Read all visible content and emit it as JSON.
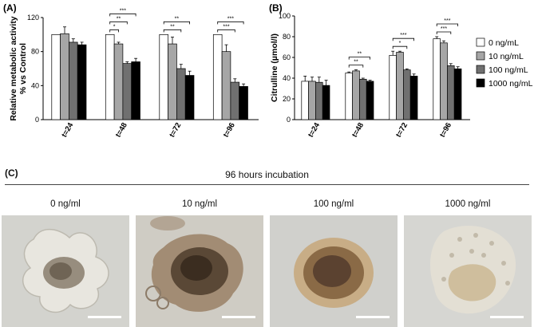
{
  "panels": {
    "a_label": "(A)",
    "b_label": "(B)",
    "c_label": "(C)",
    "c_title": "96 hours incubation"
  },
  "legend": {
    "entries": [
      "0 ng/mL",
      "10 ng/mL",
      "100 ng/mL",
      "1000 ng/mL"
    ],
    "colors": [
      "#ffffff",
      "#a6a6a6",
      "#707070",
      "#000000"
    ]
  },
  "micrographs": [
    {
      "label": "0 ng/ml",
      "appearance": "compact-organoid"
    },
    {
      "label": "10 ng/ml",
      "appearance": "dense-dark-organoid"
    },
    {
      "label": "100 ng/ml",
      "appearance": "round-dark-organoid"
    },
    {
      "label": "1000 ng/ml",
      "appearance": "dispersed-cells"
    }
  ],
  "chart_data": [
    {
      "type": "bar",
      "panel": "A",
      "ylabel_line1": "Relative metabolic activity",
      "ylabel_line2": "% vs Control",
      "categories": [
        "t=24",
        "t=48",
        "t=72",
        "t=96"
      ],
      "ylim": [
        0,
        120
      ],
      "yticks": [
        0,
        40,
        80,
        120
      ],
      "series": [
        {
          "name": "0 ng/mL",
          "values": [
            100,
            100,
            100,
            100
          ],
          "errors": [
            0,
            0,
            0,
            0
          ]
        },
        {
          "name": "10 ng/mL",
          "values": [
            101,
            89,
            89,
            80
          ],
          "errors": [
            8,
            2,
            8,
            8
          ]
        },
        {
          "name": "100 ng/mL",
          "values": [
            91,
            66,
            60,
            44
          ],
          "errors": [
            4,
            2,
            5,
            4
          ]
        },
        {
          "name": "1000 ng/mL",
          "values": [
            88,
            68,
            52,
            39
          ],
          "errors": [
            3,
            4,
            5,
            3
          ]
        }
      ],
      "significance": [
        {
          "category": 1,
          "from": 0,
          "to": 1,
          "label": "*"
        },
        {
          "category": 1,
          "from": 0,
          "to": 2,
          "label": "**"
        },
        {
          "category": 1,
          "from": 0,
          "to": 3,
          "label": "***"
        },
        {
          "category": 2,
          "from": 0,
          "to": 2,
          "label": "**"
        },
        {
          "category": 2,
          "from": 0,
          "to": 3,
          "label": "**"
        },
        {
          "category": 3,
          "from": 0,
          "to": 2,
          "label": "***"
        },
        {
          "category": 3,
          "from": 0,
          "to": 3,
          "label": "***"
        }
      ]
    },
    {
      "type": "bar",
      "panel": "B",
      "ylabel": "Citrulline (µmol/l)",
      "categories": [
        "t=24",
        "t=48",
        "t=72",
        "t=96"
      ],
      "ylim": [
        0,
        100
      ],
      "yticks": [
        0,
        20,
        40,
        60,
        80,
        100
      ],
      "series": [
        {
          "name": "0 ng/mL",
          "values": [
            37,
            45,
            62,
            78
          ],
          "errors": [
            5,
            1,
            4,
            2
          ]
        },
        {
          "name": "10 ng/mL",
          "values": [
            37,
            47,
            65,
            74
          ],
          "errors": [
            4,
            1,
            1,
            2
          ]
        },
        {
          "name": "100 ng/mL",
          "values": [
            36,
            39,
            48,
            52
          ],
          "errors": [
            5,
            1,
            1,
            2
          ]
        },
        {
          "name": "1000 ng/mL",
          "values": [
            33,
            37,
            42,
            49
          ],
          "errors": [
            5,
            1,
            2,
            2
          ]
        }
      ],
      "significance": [
        {
          "category": 1,
          "from": 0,
          "to": 2,
          "label": "**"
        },
        {
          "category": 1,
          "from": 0,
          "to": 3,
          "label": "**"
        },
        {
          "category": 2,
          "from": 0,
          "to": 2,
          "label": "*"
        },
        {
          "category": 2,
          "from": 0,
          "to": 3,
          "label": "***"
        },
        {
          "category": 3,
          "from": 0,
          "to": 2,
          "label": "***"
        },
        {
          "category": 3,
          "from": 0,
          "to": 3,
          "label": "***"
        }
      ]
    }
  ]
}
